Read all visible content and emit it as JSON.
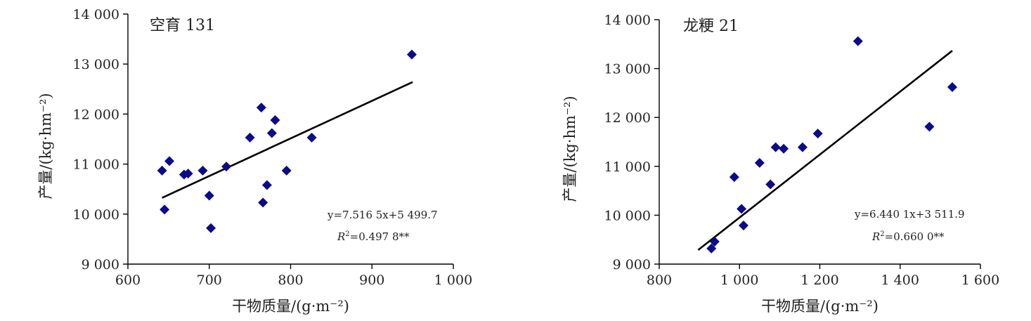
{
  "chart_data": [
    {
      "type": "scatter",
      "title": "空育 131",
      "xlabel": "干物质量/(g·m⁻²)",
      "ylabel": "产量/(kg·hm⁻²)",
      "xlim": [
        600,
        1000
      ],
      "ylim": [
        9000,
        14000
      ],
      "x_ticks": [
        600,
        700,
        800,
        900,
        1000
      ],
      "x_tick_labels": [
        "600",
        "700",
        "800",
        "900",
        "1 000"
      ],
      "y_ticks": [
        9000,
        10000,
        11000,
        12000,
        13000,
        14000
      ],
      "y_tick_labels": [
        "9 000",
        "10 000",
        "11 000",
        "12 000",
        "13 000",
        "14 000"
      ],
      "points": [
        {
          "x": 642,
          "y": 10870
        },
        {
          "x": 645,
          "y": 10090
        },
        {
          "x": 651,
          "y": 11060
        },
        {
          "x": 669,
          "y": 10790
        },
        {
          "x": 674,
          "y": 10810
        },
        {
          "x": 692,
          "y": 10870
        },
        {
          "x": 700,
          "y": 10370
        },
        {
          "x": 702,
          "y": 9720
        },
        {
          "x": 721,
          "y": 10950
        },
        {
          "x": 750,
          "y": 11530
        },
        {
          "x": 764,
          "y": 12130
        },
        {
          "x": 766,
          "y": 10230
        },
        {
          "x": 771,
          "y": 10580
        },
        {
          "x": 777,
          "y": 11620
        },
        {
          "x": 781,
          "y": 11880
        },
        {
          "x": 795,
          "y": 10870
        },
        {
          "x": 826,
          "y": 11530
        },
        {
          "x": 949,
          "y": 13190
        }
      ],
      "trendline": {
        "x_start": 642,
        "x_end": 950,
        "slope": 7.5165,
        "intercept": 5499.7
      },
      "equation_text": "y=7.516 5x+5 499.7",
      "r2_label": "R",
      "r2_value": "=0.497 8**",
      "grid": false
    },
    {
      "type": "scatter",
      "title": "龙粳 21",
      "xlabel": "干物质量/(g·m⁻²)",
      "ylabel": "产量/(kg·hm⁻²)",
      "xlim": [
        800,
        1600
      ],
      "ylim": [
        9000,
        14000
      ],
      "x_ticks": [
        800,
        1000,
        1200,
        1400,
        1600
      ],
      "x_tick_labels": [
        "800",
        "1 000",
        "1 200",
        "1 400",
        "1 600"
      ],
      "y_ticks": [
        9000,
        10000,
        11000,
        12000,
        13000,
        14000
      ],
      "y_tick_labels": [
        "9 000",
        "10 000",
        "11 000",
        "12 000",
        "13 000",
        "14 000"
      ],
      "points": [
        {
          "x": 930,
          "y": 9320
        },
        {
          "x": 938,
          "y": 9460
        },
        {
          "x": 987,
          "y": 10780
        },
        {
          "x": 1005,
          "y": 10130
        },
        {
          "x": 1010,
          "y": 9790
        },
        {
          "x": 1050,
          "y": 11070
        },
        {
          "x": 1077,
          "y": 10630
        },
        {
          "x": 1090,
          "y": 11390
        },
        {
          "x": 1110,
          "y": 11360
        },
        {
          "x": 1157,
          "y": 11390
        },
        {
          "x": 1195,
          "y": 11670
        },
        {
          "x": 1295,
          "y": 13560
        },
        {
          "x": 1473,
          "y": 11810
        },
        {
          "x": 1530,
          "y": 12620
        }
      ],
      "trendline": {
        "x_start": 897,
        "x_end": 1530,
        "slope": 6.4401,
        "intercept": 3511.9
      },
      "equation_text": "y=6.440 1x+3 511.9",
      "r2_label": "R",
      "r2_value": "=0.660 0**",
      "grid": false
    }
  ]
}
